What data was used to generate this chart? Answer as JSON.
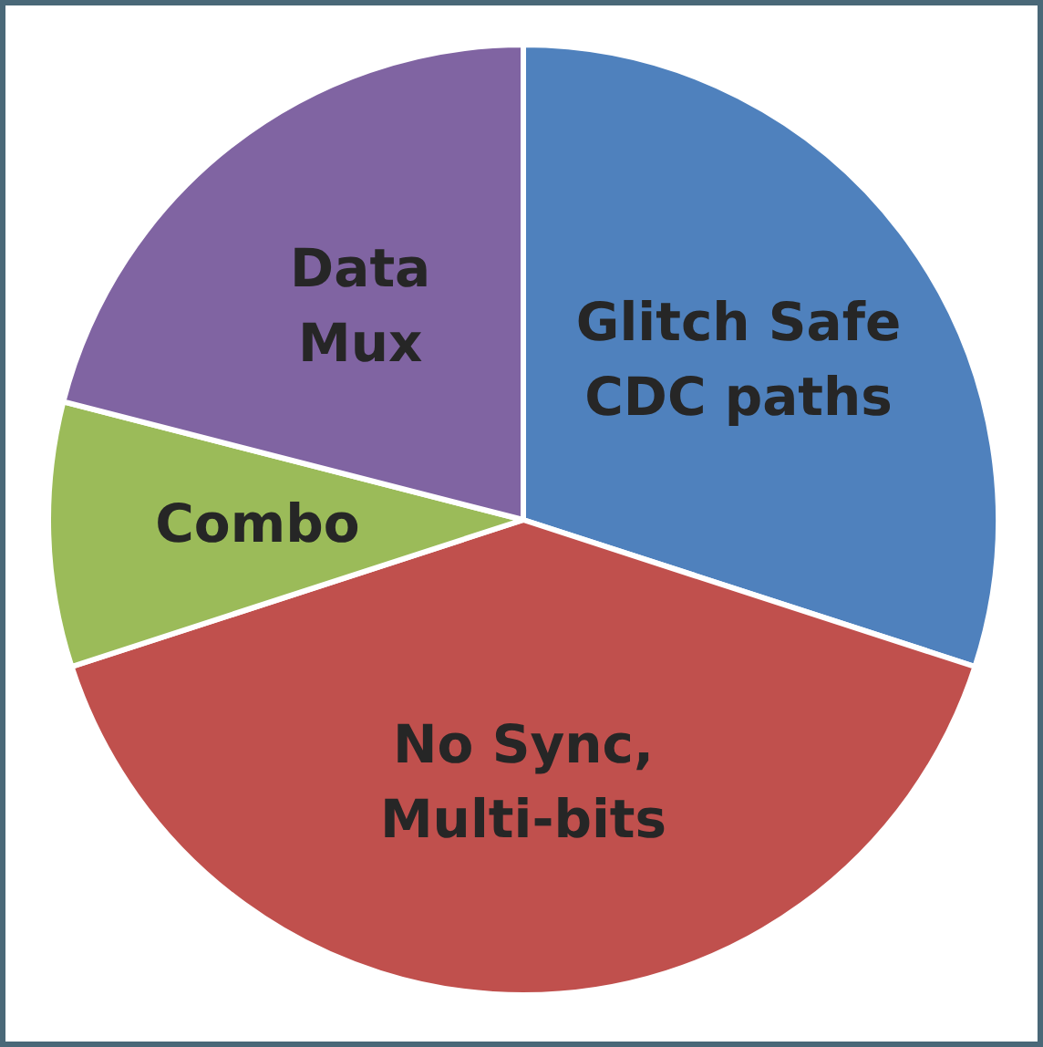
{
  "chart_data": {
    "type": "pie",
    "categories": [
      "Glitch Safe CDC paths",
      "No Sync, Multi-bits",
      "Combo",
      "Data Mux"
    ],
    "values": [
      30,
      40,
      9,
      21
    ],
    "colors": [
      "#4f81bd",
      "#c0504d",
      "#9bbb59",
      "#8064a2"
    ]
  }
}
